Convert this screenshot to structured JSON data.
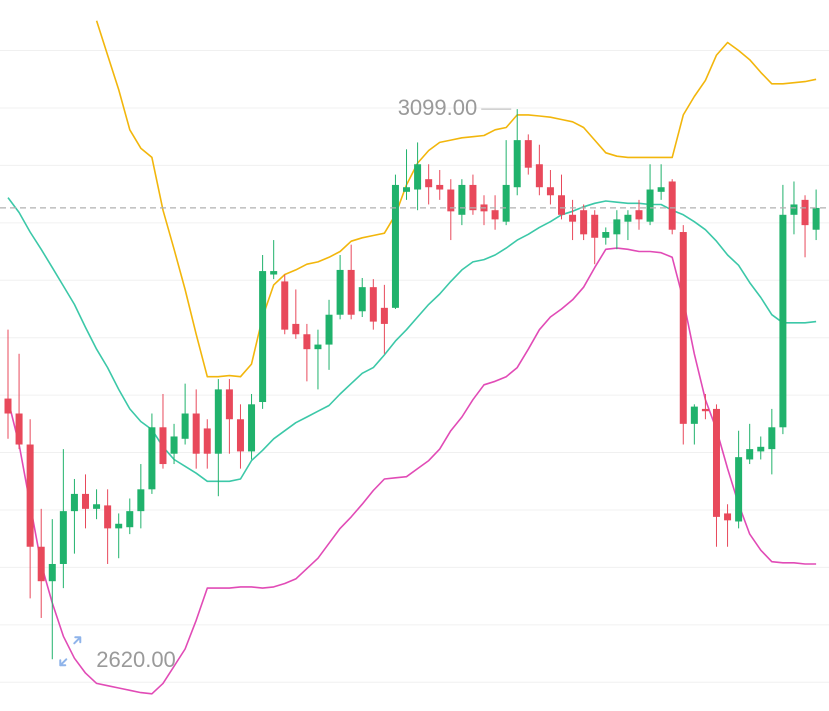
{
  "chart_data": {
    "type": "candlestick",
    "open": [
      2847,
      2834,
      2807,
      2718,
      2688,
      2703,
      2749,
      2764,
      2751,
      2754,
      2734,
      2735,
      2749,
      2768,
      2822,
      2799,
      2812,
      2834,
      2821,
      2799,
      2855,
      2829,
      2801,
      2844,
      2955,
      2949,
      2912,
      2903,
      2890,
      2894,
      2920,
      2959,
      2923,
      2944,
      2926,
      2926,
      3027,
      3029,
      3038,
      3033,
      3029,
      3007,
      3033,
      3016,
      3011,
      3001,
      3031,
      3072,
      3051,
      3031,
      3024,
      3007,
      3011,
      3007,
      2987,
      2990,
      3001,
      3011,
      3001,
      3027,
      3036,
      2992,
      2825,
      2838,
      2838,
      2747,
      2740,
      2794,
      2801,
      2803,
      2822,
      3007,
      3020,
      2994
    ],
    "high": [
      2907,
      2886,
      2829,
      2751,
      2742,
      2803,
      2777,
      2781,
      2768,
      2768,
      2747,
      2760,
      2790,
      2834,
      2851,
      2825,
      2860,
      2855,
      2829,
      2864,
      2864,
      2842,
      2851,
      2972,
      2985,
      2955,
      2942,
      2912,
      2907,
      2933,
      2972,
      2981,
      2952,
      2951,
      2946,
      3042,
      3064,
      3070,
      3051,
      3046,
      3038,
      3038,
      3042,
      3024,
      3024,
      3072,
      3099,
      3077,
      3068,
      3046,
      3042,
      3020,
      3016,
      3011,
      2996,
      3011,
      3011,
      3020,
      3051,
      3051,
      3038,
      2998,
      2842,
      2851,
      2842,
      2755,
      2819,
      2825,
      2814,
      2838,
      3033,
      3036,
      3024,
      3029
    ],
    "low": [
      2812,
      2803,
      2673,
      2656,
      2620,
      2682,
      2712,
      2734,
      2742,
      2703,
      2708,
      2729,
      2734,
      2764,
      2786,
      2790,
      2807,
      2786,
      2786,
      2762,
      2799,
      2786,
      2794,
      2838,
      2951,
      2903,
      2899,
      2862,
      2855,
      2872,
      2916,
      2916,
      2918,
      2907,
      2886,
      2925,
      3020,
      3011,
      3016,
      3020,
      2985,
      2998,
      3007,
      2998,
      2994,
      2998,
      3024,
      3042,
      3024,
      3016,
      3003,
      2985,
      2985,
      2964,
      2981,
      2977,
      2985,
      2994,
      2998,
      3020,
      2990,
      2807,
      2807,
      2829,
      2718,
      2718,
      2734,
      2790,
      2794,
      2781,
      2816,
      2990,
      2970,
      2985
    ],
    "close": [
      2834,
      2807,
      2718,
      2688,
      2703,
      2749,
      2764,
      2751,
      2755,
      2734,
      2738,
      2749,
      2768,
      2822,
      2790,
      2814,
      2834,
      2799,
      2799,
      2855,
      2829,
      2801,
      2842,
      2958,
      2958,
      2907,
      2903,
      2890,
      2894,
      2920,
      2959,
      2920,
      2944,
      2914,
      2912,
      3033,
      3031,
      3051,
      3031,
      3029,
      3010,
      3033,
      3011,
      3010,
      3003,
      3033,
      3072,
      3048,
      3031,
      3024,
      3007,
      3001,
      2990,
      2987,
      2992,
      3003,
      3007,
      3003,
      3029,
      3031,
      2994,
      2825,
      2840,
      2836,
      2744,
      2741,
      2796,
      2803,
      2805,
      2822,
      3007,
      3016,
      2998,
      3013
    ],
    "up_color": "#20b26c",
    "down_color": "#e8495b",
    "overlays": [
      {
        "color": "#f2b60c",
        "values": [
          null,
          null,
          null,
          null,
          null,
          null,
          null,
          null,
          3176,
          3146,
          3116,
          3081,
          3065,
          3057,
          3011,
          2977,
          2942,
          2903,
          2866,
          2866,
          2867,
          2866,
          2877,
          2918,
          2946,
          2955,
          2959,
          2964,
          2966,
          2970,
          2975,
          2984,
          2987,
          2989,
          2991,
          3007,
          3033,
          3052,
          3063,
          3070,
          3072,
          3074,
          3075,
          3076,
          3081,
          3083,
          3094,
          3094,
          3093,
          3092,
          3090,
          3088,
          3083,
          3072,
          3061,
          3058,
          3057,
          3057,
          3057,
          3057,
          3057,
          3094,
          3110,
          3124,
          3146,
          3157,
          3150,
          3142,
          3131,
          3121,
          3121,
          3122,
          3123,
          3125
        ]
      },
      {
        "color": "#3cc8a8",
        "values": [
          3022,
          3009,
          2992,
          2977,
          2961,
          2945,
          2929,
          2909,
          2890,
          2874,
          2855,
          2838,
          2827,
          2820,
          2805,
          2794,
          2788,
          2782,
          2775,
          2775,
          2775,
          2777,
          2793,
          2802,
          2812,
          2819,
          2826,
          2831,
          2836,
          2841,
          2851,
          2860,
          2869,
          2874,
          2885,
          2897,
          2907,
          2918,
          2929,
          2938,
          2949,
          2959,
          2966,
          2968,
          2972,
          2978,
          2985,
          2990,
          2996,
          3001,
          3007,
          3010,
          3014,
          3017,
          3019,
          3018,
          3017,
          3017,
          3016,
          3016,
          3011,
          3007,
          3001,
          2994,
          2984,
          2972,
          2963,
          2948,
          2935,
          2920,
          2913,
          2913,
          2913,
          2914
        ]
      },
      {
        "color": "#e14bb6",
        "values": [
          2846,
          2807,
          2755,
          2703,
          2669,
          2640,
          2621,
          2608,
          2599,
          2597,
          2595,
          2593,
          2591,
          2590,
          2599,
          2614,
          2629,
          2654,
          2682,
          2682,
          2682,
          2683,
          2683,
          2682,
          2683,
          2686,
          2690,
          2699,
          2708,
          2721,
          2734,
          2744,
          2755,
          2767,
          2777,
          2778,
          2779,
          2786,
          2793,
          2803,
          2819,
          2831,
          2846,
          2859,
          2862,
          2866,
          2874,
          2890,
          2907,
          2918,
          2925,
          2933,
          2944,
          2961,
          2977,
          2978,
          2977,
          2975,
          2975,
          2974,
          2970,
          2933,
          2886,
          2846,
          2820,
          2786,
          2755,
          2729,
          2715,
          2705,
          2704,
          2704,
          2703,
          2703
        ]
      }
    ],
    "ylim": [
      2575,
      3194
    ],
    "gridlines": [
      3150,
      3100,
      3050,
      3000,
      2950,
      2900,
      2850,
      2800,
      2750,
      2700,
      2650,
      2600
    ],
    "grid_color": "#f0f0f0",
    "last_price_line": true,
    "annotations": [
      {
        "value": 3099,
        "label": "3099.00"
      },
      {
        "value": 2620,
        "label": "2620.00"
      }
    ]
  }
}
